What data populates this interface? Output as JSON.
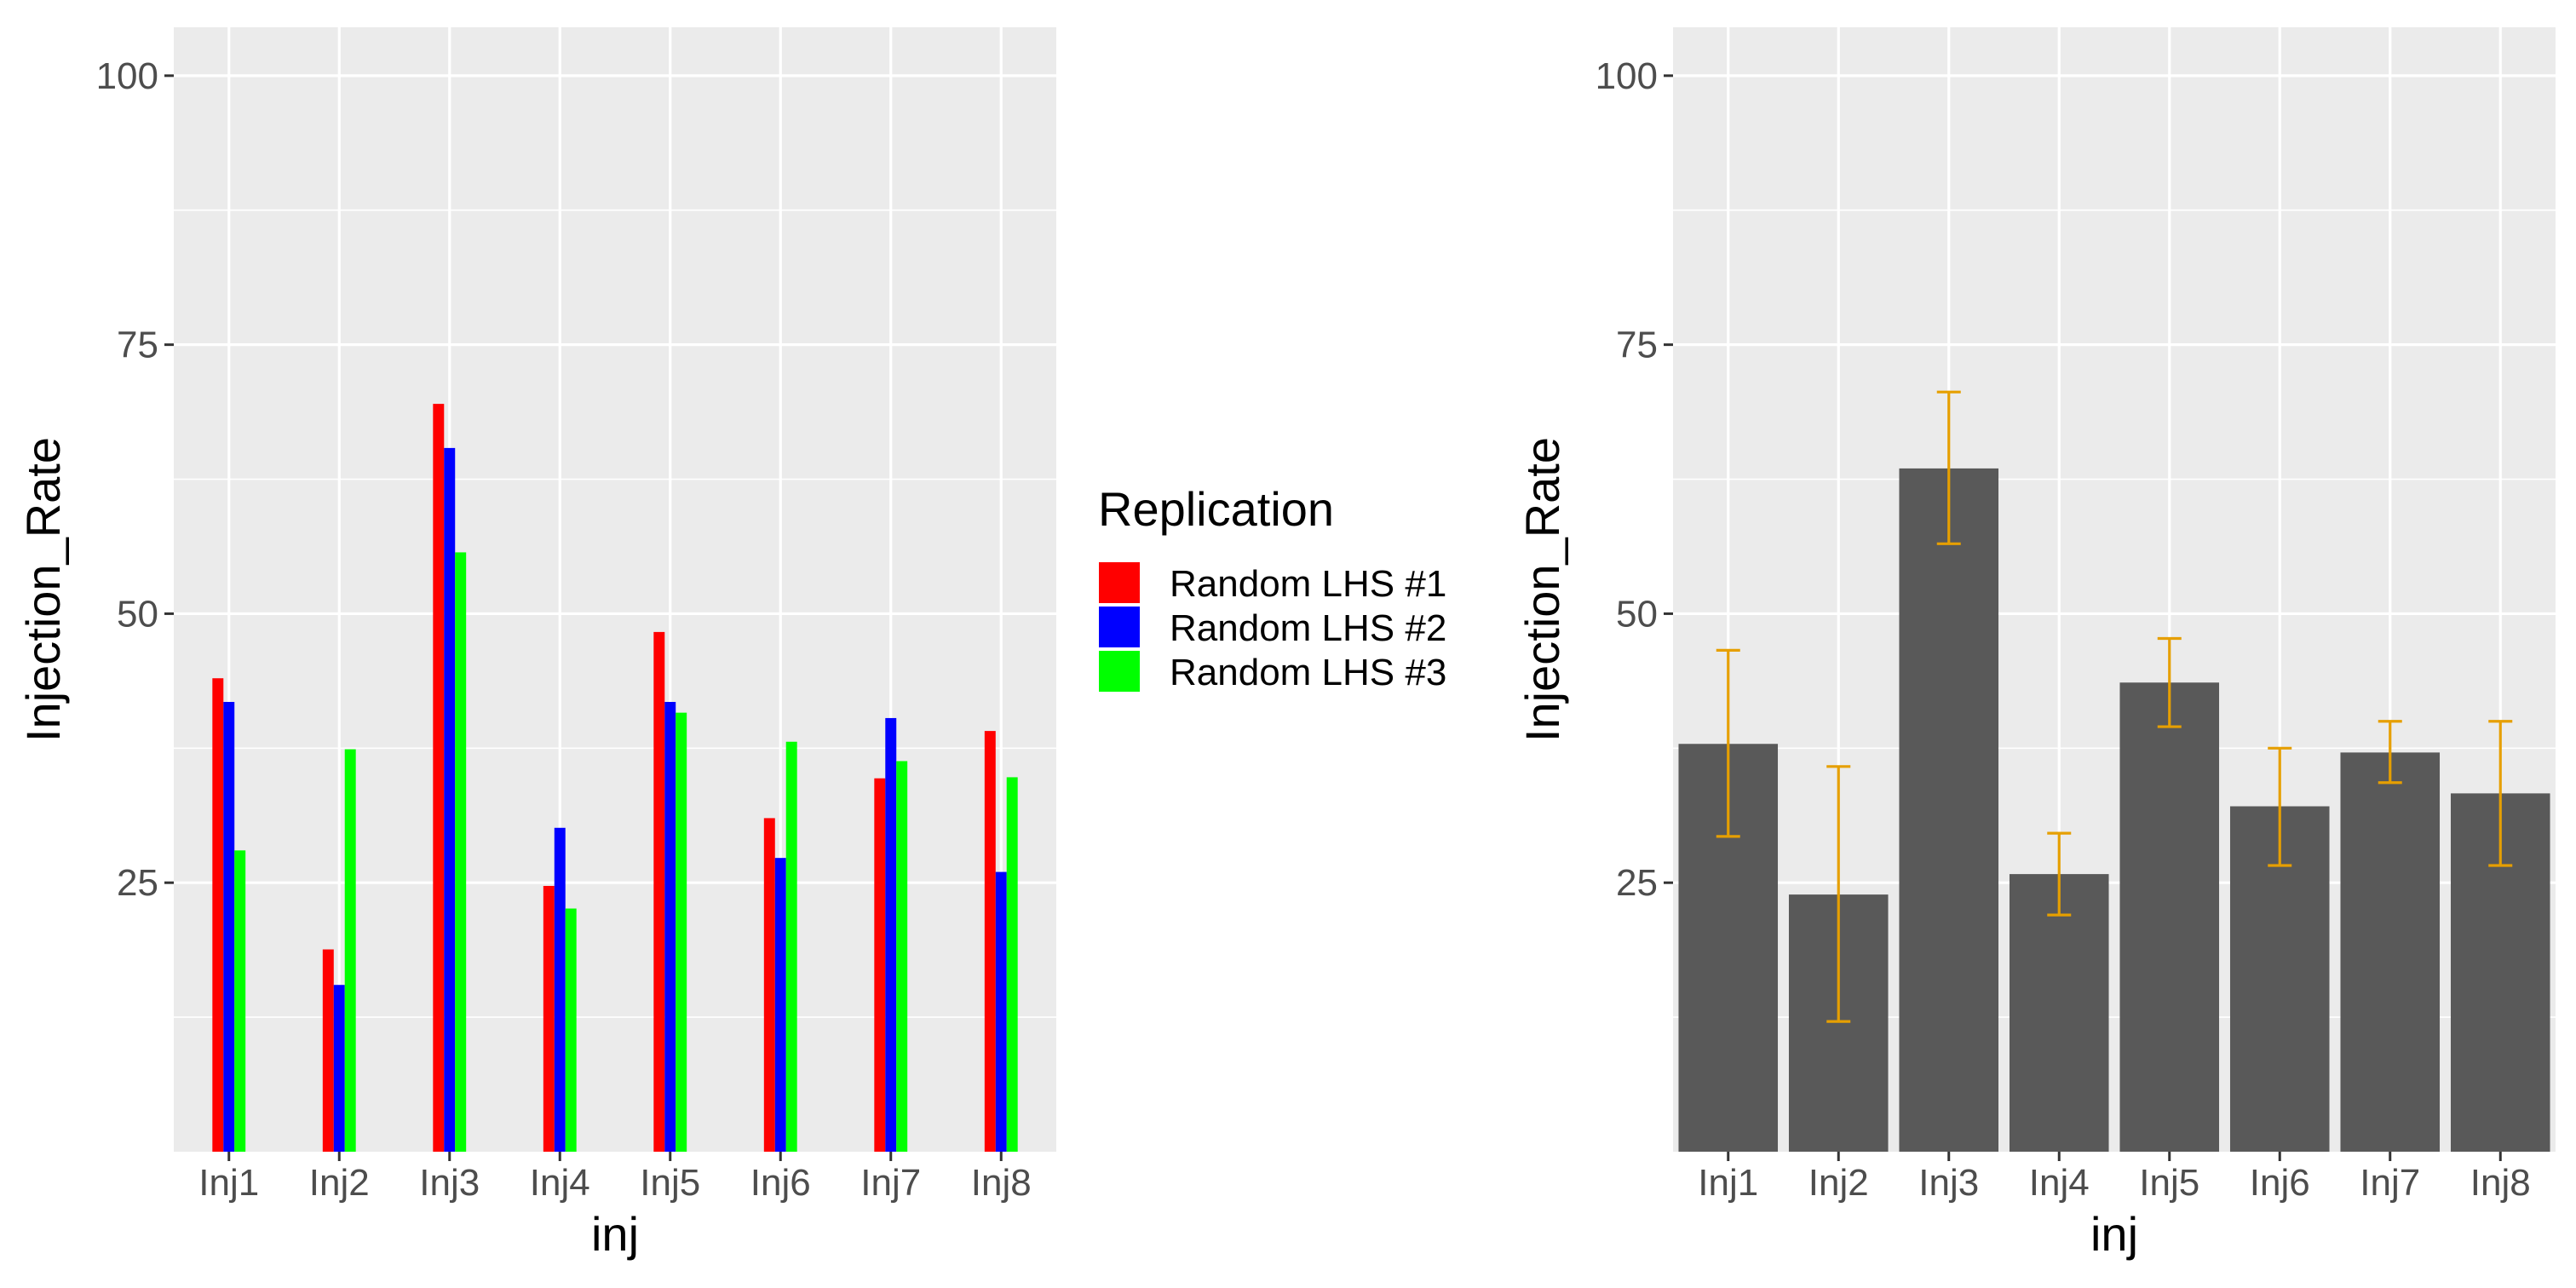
{
  "chart_data": [
    {
      "type": "bar",
      "xlabel": "inj",
      "ylabel": "Injection_Rate",
      "categories": [
        "Inj1",
        "Inj2",
        "Inj3",
        "Inj4",
        "Inj5",
        "Inj6",
        "Inj7",
        "Inj8"
      ],
      "ylim": [
        0,
        104.5
      ],
      "yticks": [
        25,
        50,
        75,
        100
      ],
      "grid": true,
      "legend": {
        "title": "Replication",
        "placement": "right"
      },
      "series": [
        {
          "name": "Random LHS #1",
          "color": "#ff0000",
          "values": [
            44.0,
            18.8,
            69.5,
            24.7,
            48.3,
            31.0,
            34.7,
            39.1
          ]
        },
        {
          "name": "Random LHS #2",
          "color": "#0000ff",
          "values": [
            41.8,
            15.5,
            65.4,
            30.1,
            41.8,
            27.3,
            40.3,
            26.0
          ]
        },
        {
          "name": "Random LHS #3",
          "color": "#00ff00",
          "values": [
            28.0,
            37.4,
            55.7,
            22.6,
            40.8,
            38.1,
            36.3,
            34.8
          ]
        }
      ]
    },
    {
      "type": "bar",
      "xlabel": "inj",
      "ylabel": "Injection_Rate",
      "categories": [
        "Inj1",
        "Inj2",
        "Inj3",
        "Inj4",
        "Inj5",
        "Inj6",
        "Inj7",
        "Inj8"
      ],
      "ylim": [
        0,
        104.5
      ],
      "yticks": [
        25,
        50,
        75,
        100
      ],
      "grid": true,
      "bar_color": "#595959",
      "errorbar_color": "#e69f00",
      "values": [
        37.9,
        23.9,
        63.5,
        25.8,
        43.6,
        32.1,
        37.1,
        33.3
      ],
      "error_low": [
        29.3,
        12.1,
        56.5,
        22.0,
        39.5,
        26.6,
        34.3,
        26.6
      ],
      "error_high": [
        46.6,
        35.8,
        70.6,
        29.6,
        47.7,
        37.5,
        40.0,
        40.0
      ]
    }
  ]
}
